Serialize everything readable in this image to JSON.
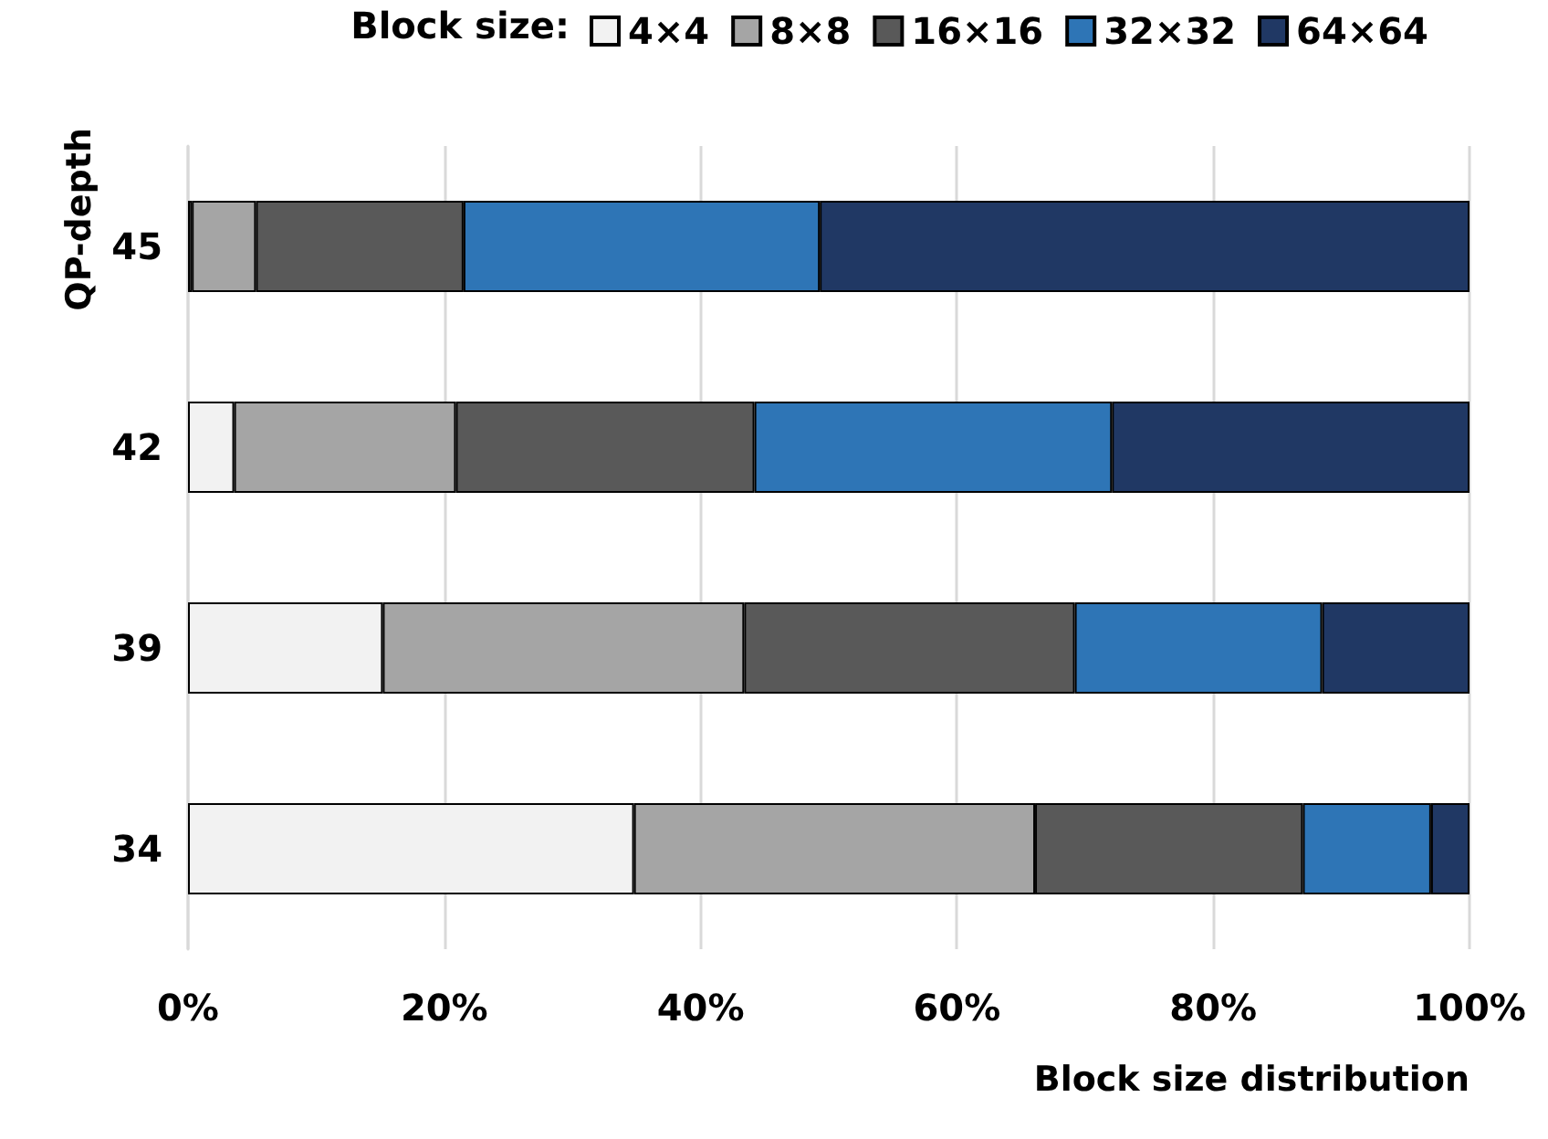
{
  "chart_data": {
    "type": "bar",
    "orientation": "horizontal",
    "stacked": true,
    "xlabel": "Block size distribution",
    "ylabel": "QP-depth",
    "legend_title": "Block size:",
    "legend": "top",
    "grid": "x",
    "categories": [
      "45",
      "42",
      "39",
      "34"
    ],
    "series": [
      {
        "name": "4×4",
        "color": "#f2f2f2",
        "values": [
          0.3,
          3.6,
          15.2,
          34.8
        ]
      },
      {
        "name": "8×8",
        "color": "#a5a5a5",
        "values": [
          5.0,
          17.3,
          28.2,
          31.3
        ]
      },
      {
        "name": "16×16",
        "color": "#595959",
        "values": [
          16.2,
          23.3,
          25.8,
          20.9
        ]
      },
      {
        "name": "32×32",
        "color": "#2e75b6",
        "values": [
          27.8,
          27.9,
          19.3,
          10.0
        ]
      },
      {
        "name": "64×64",
        "color": "#203864",
        "values": [
          50.7,
          27.9,
          11.5,
          3.0
        ]
      }
    ],
    "xlim": [
      0,
      100
    ],
    "xticks": [
      {
        "value": 0,
        "label": "0%"
      },
      {
        "value": 20,
        "label": "20%"
      },
      {
        "value": 40,
        "label": "40%"
      },
      {
        "value": 60,
        "label": "60%"
      },
      {
        "value": 80,
        "label": "80%"
      },
      {
        "value": 100,
        "label": "100%"
      }
    ]
  }
}
